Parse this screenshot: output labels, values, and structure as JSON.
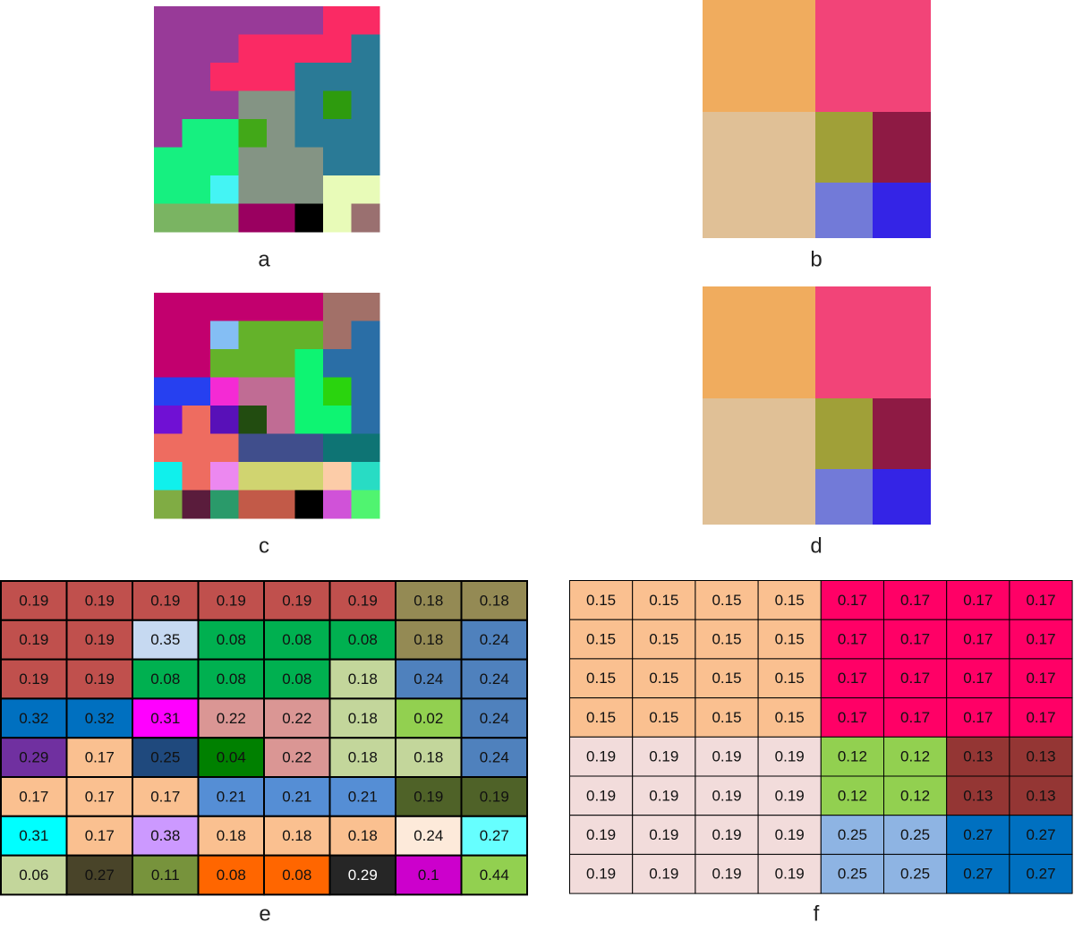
{
  "panels": [
    {
      "label": "a"
    },
    {
      "label": "b"
    },
    {
      "label": "c"
    },
    {
      "label": "d"
    }
  ],
  "table_e": {
    "label": "e",
    "rows": [
      [
        0.19,
        0.19,
        0.19,
        0.19,
        0.19,
        0.19,
        0.18,
        0.18
      ],
      [
        0.19,
        0.19,
        0.35,
        0.08,
        0.08,
        0.08,
        0.18,
        0.24
      ],
      [
        0.19,
        0.19,
        0.08,
        0.08,
        0.08,
        0.18,
        0.24,
        0.24
      ],
      [
        0.32,
        0.32,
        0.31,
        0.22,
        0.22,
        0.18,
        0.02,
        0.24
      ],
      [
        0.29,
        0.17,
        0.25,
        0.04,
        0.22,
        0.18,
        0.18,
        0.24
      ],
      [
        0.17,
        0.17,
        0.17,
        0.21,
        0.21,
        0.21,
        0.19,
        0.19
      ],
      [
        0.31,
        0.17,
        0.38,
        0.18,
        0.18,
        0.18,
        0.24,
        0.27
      ],
      [
        0.06,
        0.27,
        0.11,
        0.08,
        0.08,
        0.29,
        0.1,
        0.44
      ]
    ],
    "colors": [
      [
        "#c0504d",
        "#c0504d",
        "#c0504d",
        "#c0504d",
        "#c0504d",
        "#c0504d",
        "#948a54",
        "#948a54"
      ],
      [
        "#c0504d",
        "#c0504d",
        "#c6d9f1",
        "#00b050",
        "#00b050",
        "#00b050",
        "#948a54",
        "#4f81bd"
      ],
      [
        "#c0504d",
        "#c0504d",
        "#00b050",
        "#00b050",
        "#00b050",
        "#c3d69b",
        "#4f81bd",
        "#4f81bd"
      ],
      [
        "#0070c0",
        "#0070c0",
        "#ff00ff",
        "#da9694",
        "#da9694",
        "#c3d69b",
        "#92d050",
        "#4f81bd"
      ],
      [
        "#7030a0",
        "#fac090",
        "#1f497d",
        "#008000",
        "#da9694",
        "#c3d69b",
        "#c3d69b",
        "#4f81bd"
      ],
      [
        "#fac090",
        "#fac090",
        "#fac090",
        "#558ed5",
        "#558ed5",
        "#558ed5",
        "#4f6228",
        "#4f6228"
      ],
      [
        "#00ffff",
        "#fac090",
        "#cc99ff",
        "#fac090",
        "#fac090",
        "#fac090",
        "#fdeada",
        "#66ffff"
      ],
      [
        "#c3d69b",
        "#494429",
        "#77933c",
        "#ff6600",
        "#ff6600",
        "#262626",
        "#cc00cc",
        "#92d050"
      ]
    ]
  },
  "table_f": {
    "label": "f",
    "rows": [
      [
        0.15,
        0.15,
        0.15,
        0.15,
        0.17,
        0.17,
        0.17,
        0.17
      ],
      [
        0.15,
        0.15,
        0.15,
        0.15,
        0.17,
        0.17,
        0.17,
        0.17
      ],
      [
        0.15,
        0.15,
        0.15,
        0.15,
        0.17,
        0.17,
        0.17,
        0.17
      ],
      [
        0.15,
        0.15,
        0.15,
        0.15,
        0.17,
        0.17,
        0.17,
        0.17
      ],
      [
        0.19,
        0.19,
        0.19,
        0.19,
        0.12,
        0.12,
        0.13,
        0.13
      ],
      [
        0.19,
        0.19,
        0.19,
        0.19,
        0.12,
        0.12,
        0.13,
        0.13
      ],
      [
        0.19,
        0.19,
        0.19,
        0.19,
        0.25,
        0.25,
        0.27,
        0.27
      ],
      [
        0.19,
        0.19,
        0.19,
        0.19,
        0.25,
        0.25,
        0.27,
        0.27
      ]
    ],
    "colors": [
      [
        "#fac090",
        "#fac090",
        "#fac090",
        "#fac090",
        "#ff0066",
        "#ff0066",
        "#ff0066",
        "#ff0066"
      ],
      [
        "#fac090",
        "#fac090",
        "#fac090",
        "#fac090",
        "#ff0066",
        "#ff0066",
        "#ff0066",
        "#ff0066"
      ],
      [
        "#fac090",
        "#fac090",
        "#fac090",
        "#fac090",
        "#ff0066",
        "#ff0066",
        "#ff0066",
        "#ff0066"
      ],
      [
        "#fac090",
        "#fac090",
        "#fac090",
        "#fac090",
        "#ff0066",
        "#ff0066",
        "#ff0066",
        "#ff0066"
      ],
      [
        "#f2dcdb",
        "#f2dcdb",
        "#f2dcdb",
        "#f2dcdb",
        "#92d050",
        "#92d050",
        "#943634",
        "#943634"
      ],
      [
        "#f2dcdb",
        "#f2dcdb",
        "#f2dcdb",
        "#f2dcdb",
        "#92d050",
        "#92d050",
        "#943634",
        "#943634"
      ],
      [
        "#f2dcdb",
        "#f2dcdb",
        "#f2dcdb",
        "#f2dcdb",
        "#8eb4e3",
        "#8eb4e3",
        "#0070c0",
        "#0070c0"
      ],
      [
        "#f2dcdb",
        "#f2dcdb",
        "#f2dcdb",
        "#f2dcdb",
        "#8eb4e3",
        "#8eb4e3",
        "#0070c0",
        "#0070c0"
      ]
    ]
  }
}
